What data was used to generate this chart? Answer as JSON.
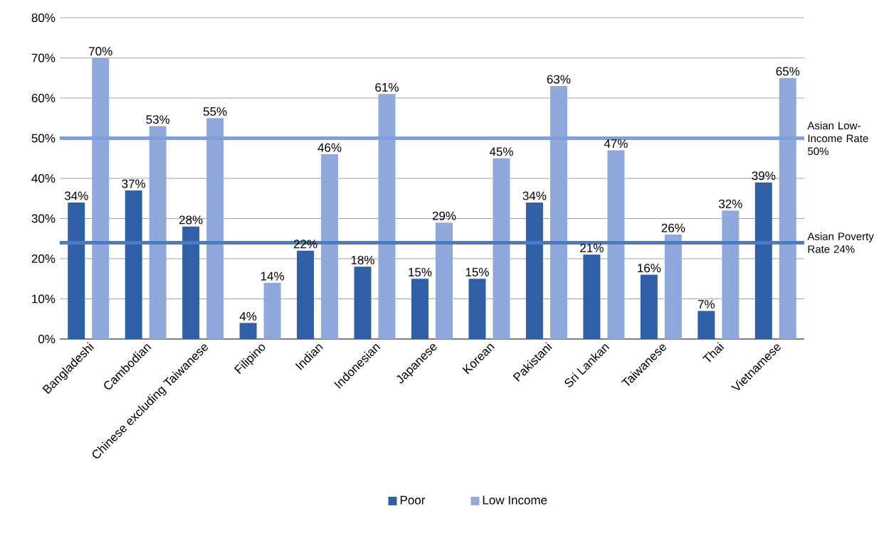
{
  "chart_data": {
    "type": "bar",
    "categories": [
      "Bangladeshi",
      "Cambodian",
      "Chinese excluding Taiwanese",
      "Filipino",
      "Indian",
      "Indonesian",
      "Japanese",
      "Korean",
      "Pakistani",
      "Sri Lankan",
      "Taiwanese",
      "Thai",
      "Vietnamese"
    ],
    "series": [
      {
        "name": "Poor",
        "color": "#2f5fa7",
        "values": [
          34,
          37,
          28,
          4,
          22,
          18,
          15,
          15,
          34,
          21,
          16,
          7,
          39
        ],
        "value_labels": [
          "34%",
          "37%",
          "28%",
          "4%",
          "22%",
          "18%",
          "15%",
          "15%",
          "34%",
          "21%",
          "16%",
          "7%",
          "39%"
        ]
      },
      {
        "name": "Low Income",
        "color": "#8fa9dc",
        "values": [
          70,
          53,
          55,
          14,
          46,
          61,
          29,
          45,
          63,
          47,
          26,
          32,
          65
        ],
        "value_labels": [
          "70%",
          "53%",
          "55%",
          "14%",
          "46%",
          "61%",
          "29%",
          "45%",
          "63%",
          "47%",
          "26%",
          "32%",
          "65%"
        ]
      }
    ],
    "ylim": [
      0,
      80
    ],
    "yticks": [
      {
        "value": 0,
        "label": "0%"
      },
      {
        "value": 10,
        "label": "10%"
      },
      {
        "value": 20,
        "label": "20%"
      },
      {
        "value": 30,
        "label": "30%"
      },
      {
        "value": 40,
        "label": "40%"
      },
      {
        "value": 50,
        "label": "50%"
      },
      {
        "value": 60,
        "label": "60%"
      },
      {
        "value": 70,
        "label": "70%"
      },
      {
        "value": 80,
        "label": "80%"
      }
    ],
    "grid": "y",
    "legend": "bottom",
    "ref_lines": [
      {
        "axis": "y",
        "value": 50,
        "label": "Asian Low-Income Rate 50%",
        "color": "#7f9fd6"
      },
      {
        "axis": "y",
        "value": 24,
        "label": "Asian Poverty Rate 24%",
        "color": "#4a7cc4"
      }
    ]
  }
}
